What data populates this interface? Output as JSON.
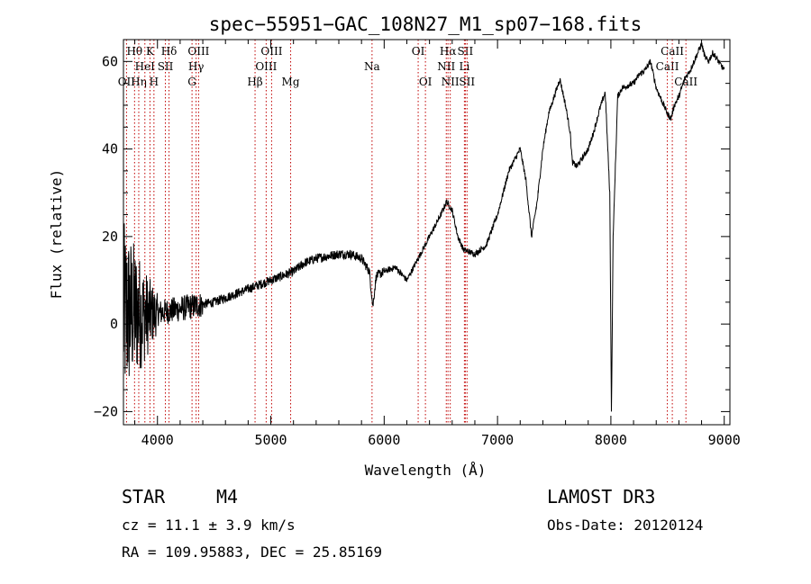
{
  "chart_data": {
    "type": "line",
    "title": "spec−55951−GAC_108N27_M1_sp07−168.fits",
    "xlabel": "Wavelength (Å)",
    "ylabel": "Flux (relative)",
    "xlim": [
      3700,
      9050
    ],
    "ylim": [
      -23,
      65
    ],
    "xticks": [
      4000,
      5000,
      6000,
      7000,
      8000,
      9000
    ],
    "xtick_labels": [
      "4000",
      "5000",
      "6000",
      "7000",
      "8000",
      "9000"
    ],
    "yticks": [
      -20,
      0,
      20,
      40,
      60
    ],
    "ytick_labels": [
      "−20",
      "0",
      "20",
      "40",
      "60"
    ],
    "line_color": "#000000",
    "marker_color": "#c00000",
    "spectral_lines": [
      {
        "label": "OII",
        "wavelength": 3727,
        "row": 3
      },
      {
        "label": "Hθ",
        "wavelength": 3798,
        "row": 1
      },
      {
        "label": "Hη",
        "wavelength": 3835,
        "row": 3
      },
      {
        "label": "HeI",
        "wavelength": 3889,
        "row": 2
      },
      {
        "label": "K",
        "wavelength": 3934,
        "row": 1
      },
      {
        "label": "H",
        "wavelength": 3969,
        "row": 3
      },
      {
        "label": "SII",
        "wavelength": 4070,
        "row": 2
      },
      {
        "label": "Hδ",
        "wavelength": 4102,
        "row": 1
      },
      {
        "label": "G",
        "wavelength": 4305,
        "row": 3
      },
      {
        "label": "Hγ",
        "wavelength": 4341,
        "row": 2
      },
      {
        "label": "OIII",
        "wavelength": 4363,
        "row": 1
      },
      {
        "label": "Hβ",
        "wavelength": 4861,
        "row": 3
      },
      {
        "label": "OIII",
        "wavelength": 4959,
        "row": 2
      },
      {
        "label": "OIII",
        "wavelength": 5007,
        "row": 1
      },
      {
        "label": "Mg",
        "wavelength": 5175,
        "row": 3
      },
      {
        "label": "Na",
        "wavelength": 5893,
        "row": 2
      },
      {
        "label": "OI",
        "wavelength": 6300,
        "row": 1
      },
      {
        "label": "OI",
        "wavelength": 6364,
        "row": 3
      },
      {
        "label": "NII",
        "wavelength": 6548,
        "row": 2
      },
      {
        "label": "Hα",
        "wavelength": 6563,
        "row": 1
      },
      {
        "label": "NII",
        "wavelength": 6583,
        "row": 3
      },
      {
        "label": "Li",
        "wavelength": 6708,
        "row": 2
      },
      {
        "label": "SII",
        "wavelength": 6716,
        "row": 1
      },
      {
        "label": "SII",
        "wavelength": 6731,
        "row": 3
      },
      {
        "label": "CaII",
        "wavelength": 8498,
        "row": 2
      },
      {
        "label": "CaII",
        "wavelength": 8542,
        "row": 1
      },
      {
        "label": "CaII",
        "wavelength": 8662,
        "row": 3
      }
    ],
    "series": [
      {
        "name": "flux",
        "x": [
          3700,
          3780,
          3900,
          4000,
          4100,
          4200,
          4300,
          4400,
          4500,
          4600,
          4700,
          4800,
          4900,
          5000,
          5100,
          5200,
          5300,
          5400,
          5500,
          5600,
          5700,
          5800,
          5870,
          5900,
          5930,
          6000,
          6100,
          6200,
          6300,
          6400,
          6500,
          6550,
          6600,
          6650,
          6700,
          6800,
          6900,
          7000,
          7050,
          7100,
          7200,
          7250,
          7300,
          7350,
          7400,
          7450,
          7500,
          7550,
          7600,
          7640,
          7660,
          7700,
          7750,
          7800,
          7850,
          7900,
          7950,
          7990,
          8005,
          8020,
          8060,
          8100,
          8200,
          8250,
          8300,
          8350,
          8400,
          8450,
          8500,
          8530,
          8560,
          8600,
          8650,
          8700,
          8750,
          8800,
          8830,
          8860,
          8900,
          8950,
          9000
        ],
        "y": [
          2,
          3,
          2,
          2.5,
          3,
          3.5,
          4,
          4.5,
          5,
          6,
          7,
          8,
          9,
          10,
          11,
          12,
          14,
          15,
          15.5,
          16,
          16,
          15,
          12,
          4,
          11,
          12,
          13,
          10,
          15,
          20,
          25,
          28,
          26,
          20,
          17,
          16,
          18,
          25,
          30,
          35,
          40,
          33,
          20,
          28,
          40,
          48,
          52,
          56,
          50,
          44,
          37,
          36,
          38,
          40,
          44,
          49,
          53,
          30,
          -20,
          20,
          52,
          54,
          55,
          57,
          58,
          60,
          54,
          51,
          48,
          47,
          50,
          52,
          56,
          58,
          61,
          64,
          61,
          60,
          62,
          60,
          58
        ]
      }
    ]
  },
  "info": {
    "object_type": "STAR",
    "subclass": "M4",
    "survey": "LAMOST DR3",
    "redshift": "cz = 11.1 ± 3.9 km/s",
    "obs_date": "Obs-Date: 20120124",
    "coords": "RA = 109.95883, DEC =  25.85169"
  }
}
